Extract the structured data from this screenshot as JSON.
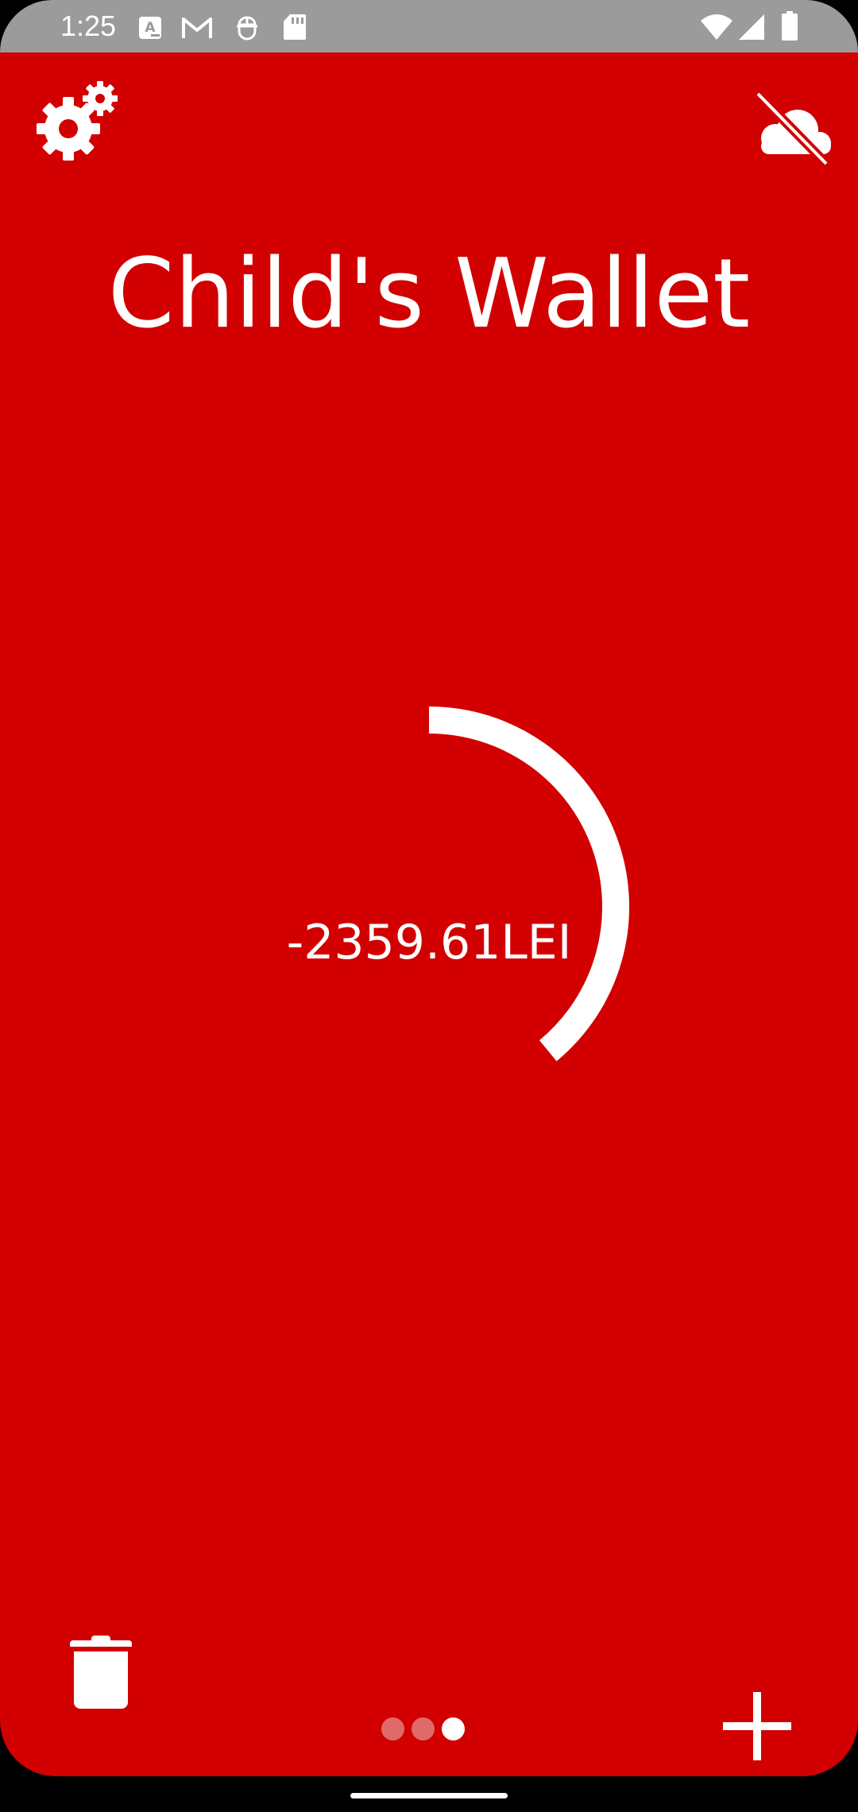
{
  "status_bar": {
    "time": "1:25",
    "icons": [
      "translate-notification-icon",
      "gmail-icon",
      "drag-notification-icon",
      "sd-card-icon",
      "wifi-icon",
      "cellular-signal-icon",
      "battery-icon"
    ]
  },
  "toolbar": {
    "settings_icon": "gears-icon",
    "sync_icon": "cloud-off-icon"
  },
  "wallet": {
    "title": "Child's Wallet",
    "balance": "-2359.61LEI",
    "gauge_fraction": 0.39
  },
  "bottom_bar": {
    "delete_icon": "trash-icon",
    "add_icon": "plus-icon",
    "pages_total": 3,
    "page_active": 3
  },
  "colors": {
    "background": "#d20000",
    "status_bar": "#9b9b9b",
    "foreground": "#ffffff",
    "dot_inactive": "#e06a6a"
  }
}
